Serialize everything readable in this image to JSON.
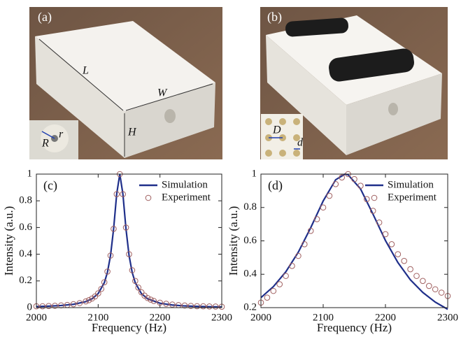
{
  "photos": [
    {
      "label": "(a)",
      "annotations": [
        "L",
        "W",
        "H",
        "r",
        "R"
      ]
    },
    {
      "label": "(b)",
      "annotations": [
        "D",
        "d"
      ]
    }
  ],
  "chart_data": [
    {
      "type": "line",
      "label": "(c)",
      "xlabel": "Frequency (Hz)",
      "ylabel": "Intensity (a.u.)",
      "xlim": [
        2000,
        2300
      ],
      "xticks": [
        2000,
        2100,
        2200,
        2300
      ],
      "ylim": [
        0,
        1
      ],
      "yticks": [
        0,
        0.2,
        0.4,
        0.6,
        0.8,
        1
      ],
      "legend": "upper right",
      "series": [
        {
          "name": "Simulation",
          "color": "#1f2f8a",
          "mode": "line",
          "x": [
            2000,
            2020,
            2040,
            2060,
            2080,
            2090,
            2100,
            2110,
            2115,
            2120,
            2125,
            2130,
            2135,
            2140,
            2145,
            2150,
            2155,
            2160,
            2170,
            2180,
            2200,
            2220,
            2240,
            2260,
            2280,
            2300
          ],
          "values": [
            0.008,
            0.011,
            0.016,
            0.025,
            0.045,
            0.066,
            0.105,
            0.187,
            0.265,
            0.39,
            0.59,
            0.852,
            1,
            0.852,
            0.59,
            0.39,
            0.265,
            0.187,
            0.105,
            0.066,
            0.033,
            0.0195,
            0.0129,
            0.0091,
            0.0068,
            0.0053
          ]
        },
        {
          "name": "Experiment",
          "color": "#a06060",
          "mode": "markers",
          "x": [
            2000,
            2010,
            2020,
            2030,
            2040,
            2050,
            2060,
            2070,
            2080,
            2085,
            2090,
            2095,
            2100,
            2105,
            2110,
            2115,
            2120,
            2125,
            2130,
            2135,
            2140,
            2145,
            2150,
            2155,
            2160,
            2165,
            2170,
            2175,
            2180,
            2185,
            2190,
            2200,
            2210,
            2220,
            2230,
            2240,
            2250,
            2260,
            2270,
            2280,
            2290,
            2300
          ],
          "values": [
            0.01,
            0.01,
            0.012,
            0.014,
            0.017,
            0.02,
            0.026,
            0.034,
            0.047,
            0.056,
            0.068,
            0.084,
            0.107,
            0.14,
            0.19,
            0.27,
            0.39,
            0.59,
            0.85,
            1,
            0.85,
            0.6,
            0.4,
            0.28,
            0.2,
            0.15,
            0.115,
            0.09,
            0.072,
            0.06,
            0.05,
            0.037,
            0.029,
            0.023,
            0.019,
            0.016,
            0.013,
            0.011,
            0.01,
            0.009,
            0.008,
            0.007
          ]
        }
      ]
    },
    {
      "type": "line",
      "label": "(d)",
      "xlabel": "Frequency (Hz)",
      "ylabel": "Intensity (a.u.)",
      "xlim": [
        2000,
        2300
      ],
      "xticks": [
        2000,
        2100,
        2200,
        2300
      ],
      "ylim": [
        0.2,
        1
      ],
      "yticks": [
        0.2,
        0.4,
        0.6,
        0.8,
        1
      ],
      "legend": "upper right",
      "series": [
        {
          "name": "Simulation",
          "color": "#1f2f8a",
          "mode": "line",
          "x": [
            2000,
            2020,
            2040,
            2060,
            2080,
            2100,
            2120,
            2135,
            2140,
            2160,
            2180,
            2200,
            2220,
            2240,
            2260,
            2280,
            2300
          ],
          "values": [
            0.26,
            0.326,
            0.415,
            0.532,
            0.679,
            0.839,
            0.966,
            1,
            0.996,
            0.911,
            0.76,
            0.602,
            0.47,
            0.367,
            0.291,
            0.233,
            0.19
          ]
        },
        {
          "name": "Experiment",
          "color": "#a06060",
          "mode": "markers",
          "x": [
            2000,
            2010,
            2020,
            2030,
            2040,
            2050,
            2060,
            2070,
            2080,
            2090,
            2100,
            2110,
            2120,
            2130,
            2140,
            2150,
            2160,
            2170,
            2180,
            2190,
            2200,
            2210,
            2220,
            2230,
            2240,
            2250,
            2260,
            2270,
            2280,
            2290,
            2300
          ],
          "values": [
            0.23,
            0.26,
            0.3,
            0.34,
            0.39,
            0.45,
            0.51,
            0.58,
            0.66,
            0.73,
            0.8,
            0.87,
            0.94,
            0.98,
            1,
            0.97,
            0.93,
            0.85,
            0.78,
            0.71,
            0.64,
            0.58,
            0.52,
            0.48,
            0.43,
            0.39,
            0.36,
            0.33,
            0.31,
            0.29,
            0.27
          ]
        }
      ]
    }
  ]
}
